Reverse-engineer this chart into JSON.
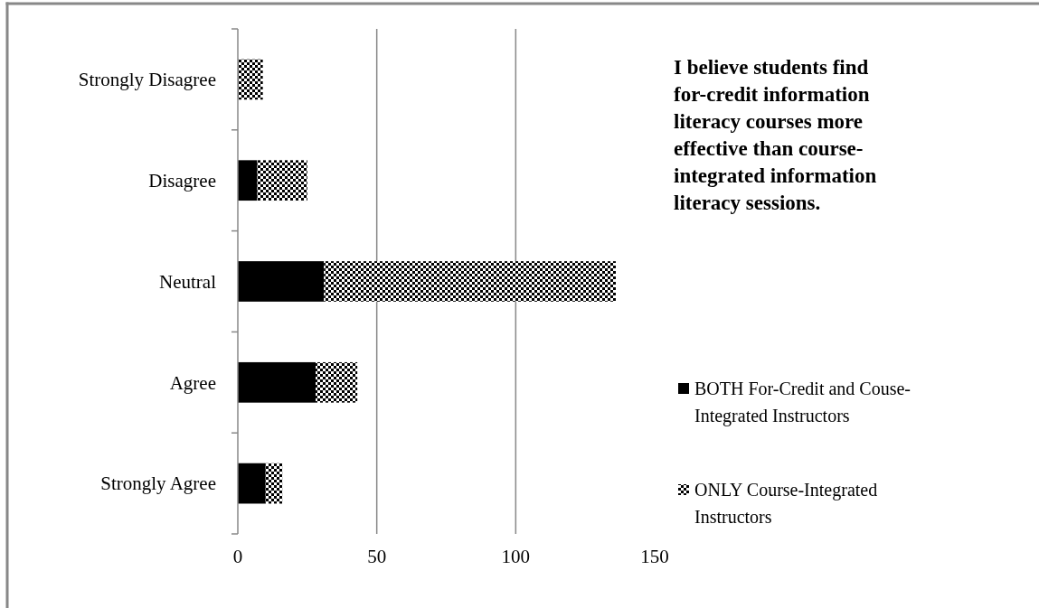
{
  "chart_data": {
    "type": "bar",
    "orientation": "horizontal",
    "stacked": true,
    "categories": [
      "Strongly Disagree",
      "Disagree",
      "Neutral",
      "Agree",
      "Strongly Agree"
    ],
    "series": [
      {
        "name": "BOTH For-Credit and Couse-Integrated Instructors",
        "color": "#000000",
        "values": [
          0,
          7,
          31,
          28,
          10
        ]
      },
      {
        "name": "ONLY Course-Integrated Instructors",
        "color": "#000000",
        "values": [
          9,
          18,
          105,
          15,
          6
        ]
      }
    ],
    "xlim": [
      0,
      150
    ],
    "xticks": [
      0,
      50,
      100,
      150
    ],
    "grid": "x",
    "legend": "right",
    "annotations": [
      "I believe students find for-credit information literacy courses more effective than course-integrated information literacy sessions."
    ]
  }
}
